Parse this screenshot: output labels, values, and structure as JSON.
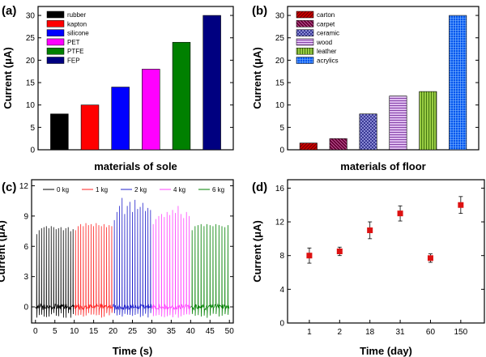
{
  "chart_data": [
    {
      "panel": "(a)",
      "type": "bar",
      "categories": [
        "rubber",
        "kapton",
        "silicone",
        "PET",
        "PTFE",
        "FEP"
      ],
      "values": [
        8,
        10,
        14,
        18,
        24,
        30
      ],
      "colors": [
        "#000000",
        "#ff0000",
        "#0000ff",
        "#ff00ff",
        "#008000",
        "#000080"
      ],
      "title": "",
      "xlabel": "materials of sole",
      "ylabel": "Current (μA)",
      "ylim": [
        0,
        32
      ],
      "yticks": [
        "0",
        "5",
        "10",
        "15",
        "20",
        "25",
        "30"
      ],
      "legend": {
        "position": "top-left",
        "entries": [
          "rubber",
          "kapton",
          "silicone",
          "PET",
          "PTFE",
          "FEP"
        ]
      },
      "grid": false
    },
    {
      "panel": "(b)",
      "type": "bar",
      "categories": [
        "carton",
        "carpet",
        "ceramic",
        "wood",
        "leather",
        "acrylics"
      ],
      "values": [
        1.5,
        2.5,
        8,
        12,
        13,
        30
      ],
      "colors": [
        "#cc0000",
        "#660033",
        "#333399",
        "#9966cc",
        "#66aa22",
        "#0066ff"
      ],
      "patterns": [
        "diag-right",
        "diag-left",
        "cross-diag",
        "hlines",
        "vlines",
        "grid"
      ],
      "title": "",
      "xlabel": "materials of floor",
      "ylabel": "Current (μA)",
      "ylim": [
        0,
        32
      ],
      "yticks": [
        "0",
        "5",
        "10",
        "15",
        "20",
        "25",
        "30"
      ],
      "legend": {
        "position": "top-left",
        "entries": [
          "carton",
          "carpet",
          "ceramic",
          "wood",
          "leather",
          "acrylics"
        ]
      },
      "grid": false
    },
    {
      "panel": "(c)",
      "type": "line",
      "xlabel": "Time (s)",
      "ylabel": "Current (μA)",
      "xlim": [
        -1,
        51
      ],
      "ylim": [
        -1.6,
        12.6
      ],
      "xticks": [
        0,
        5,
        10,
        15,
        20,
        25,
        30,
        35,
        40,
        45,
        50
      ],
      "yticks": [
        0,
        3,
        6,
        9,
        12
      ],
      "legend": {
        "position": "top",
        "entries": [
          "0 kg",
          "1 kg",
          "2 kg",
          "4 kg",
          "6 kg"
        ]
      },
      "series": [
        {
          "name": "0 kg",
          "color": "#000000",
          "x_range": [
            0,
            10
          ],
          "peaks": [
            7.2,
            7.6,
            7.8,
            7.9,
            8.0,
            7.8,
            8.0,
            7.9,
            7.7,
            7.8,
            7.9,
            7.6,
            7.8,
            7.9,
            7.5,
            7.7
          ]
        },
        {
          "name": "1 kg",
          "color": "#ff2222",
          "x_range": [
            10,
            20
          ],
          "peaks": [
            7.6,
            8.0,
            8.2,
            8.0,
            8.3,
            8.1,
            8.2,
            8.0,
            8.3,
            8.1,
            8.0,
            8.2,
            7.9,
            8.1,
            8.0
          ]
        },
        {
          "name": "2 kg",
          "color": "#2222cc",
          "x_range": [
            20,
            30
          ],
          "peaks": [
            8.6,
            9.4,
            10.0,
            10.8,
            9.2,
            10.0,
            10.4,
            9.4,
            10.6,
            9.7,
            9.9,
            10.3,
            9.5,
            9.8,
            9.6
          ]
        },
        {
          "name": "4 kg",
          "color": "#ff44ff",
          "x_range": [
            30,
            40
          ],
          "peaks": [
            8.2,
            8.7,
            9.0,
            9.2,
            8.9,
            9.4,
            9.1,
            9.6,
            9.3,
            10.0,
            9.2,
            8.8,
            9.4,
            9.0
          ]
        },
        {
          "name": "6 kg",
          "color": "#008000",
          "x_range": [
            40,
            50
          ],
          "peaks": [
            7.6,
            8.0,
            8.1,
            8.2,
            8.0,
            8.2,
            8.1,
            8.0,
            8.2,
            8.1,
            8.0,
            7.9,
            8.1
          ]
        }
      ],
      "grid": false
    },
    {
      "panel": "(d)",
      "type": "scatter",
      "categories": [
        "1",
        "2",
        "18",
        "31",
        "60",
        "150"
      ],
      "values": [
        8.0,
        8.5,
        11.0,
        13.0,
        7.7,
        14.0
      ],
      "errors": [
        0.9,
        0.5,
        1.0,
        0.9,
        0.5,
        1.0
      ],
      "color": "#dd1111",
      "xlabel": "Time (day)",
      "ylabel": "Current (μA)",
      "ylim": [
        0,
        17
      ],
      "yticks": [
        "0",
        "4",
        "8",
        "12",
        "16"
      ],
      "grid": false
    }
  ]
}
